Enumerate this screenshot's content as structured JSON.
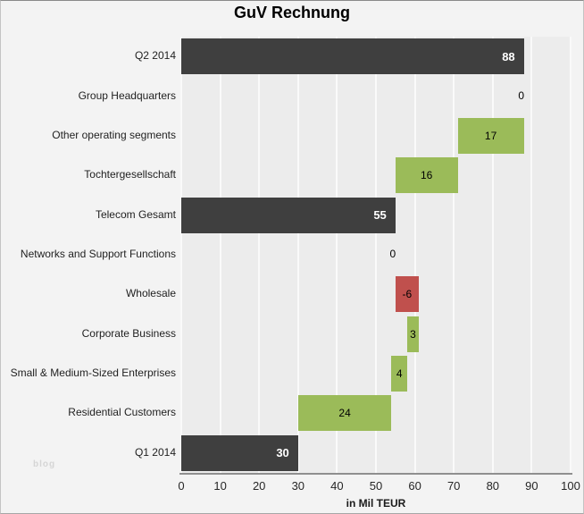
{
  "title": "GuV Rechnung",
  "watermark": "blog",
  "colors": {
    "total_bar": "#3f3f3f",
    "increase_bar": "#9bbb59",
    "decrease_bar": "#c0504d",
    "figure_bg": "#f3f3f3",
    "plot_bg": "#ececec",
    "gridline": "#fafafa",
    "axis_line": "#8f8f8f",
    "total_label": "#ffffff",
    "value_label": "#000000"
  },
  "chart_data": {
    "type": "bar",
    "subtype": "horizontal-waterfall",
    "title": "GuV Rechnung",
    "xlabel": "in Mil TEUR",
    "xlim": [
      0,
      100
    ],
    "xticks": [
      "0",
      "10",
      "20",
      "30",
      "40",
      "50",
      "60",
      "70",
      "80",
      "90",
      "100"
    ],
    "grid": true,
    "legend": "none",
    "categories": [
      "Q2 2014",
      "Group Headquarters",
      "Other operating segments",
      "Tochtergesellschaft",
      "Telecom Gesamt",
      "Networks and Support Functions",
      "Wholesale",
      "Corporate Business",
      "Small & Medium-Sized Enterprises",
      "Residential Customers",
      "Q1 2014"
    ],
    "rows": [
      {
        "label": "Q2 2014",
        "value": 88,
        "value_text": "88",
        "start": 0,
        "end": 88,
        "type": "total"
      },
      {
        "label": "Group Headquarters",
        "value": 0,
        "value_text": "0",
        "start": 88,
        "end": 88,
        "type": "zero"
      },
      {
        "label": "Other operating segments",
        "value": 17,
        "value_text": "17",
        "start": 71,
        "end": 88,
        "type": "increase"
      },
      {
        "label": "Tochtergesellschaft",
        "value": 16,
        "value_text": "16",
        "start": 55,
        "end": 71,
        "type": "increase"
      },
      {
        "label": "Telecom Gesamt",
        "value": 55,
        "value_text": "55",
        "start": 0,
        "end": 55,
        "type": "total"
      },
      {
        "label": "Networks and Support Functions",
        "value": 0,
        "value_text": "0",
        "start": 55,
        "end": 55,
        "type": "zero"
      },
      {
        "label": "Wholesale",
        "value": -6,
        "value_text": "-6",
        "start": 55,
        "end": 61,
        "type": "decrease"
      },
      {
        "label": "Corporate Business",
        "value": 3,
        "value_text": "3",
        "start": 58,
        "end": 61,
        "type": "increase"
      },
      {
        "label": "Small & Medium-Sized Enterprises",
        "value": 4,
        "value_text": "4",
        "start": 54,
        "end": 58,
        "type": "increase"
      },
      {
        "label": "Residential Customers",
        "value": 24,
        "value_text": "24",
        "start": 30,
        "end": 54,
        "type": "increase"
      },
      {
        "label": "Q1 2014",
        "value": 30,
        "value_text": "30",
        "start": 0,
        "end": 30,
        "type": "total"
      }
    ]
  }
}
